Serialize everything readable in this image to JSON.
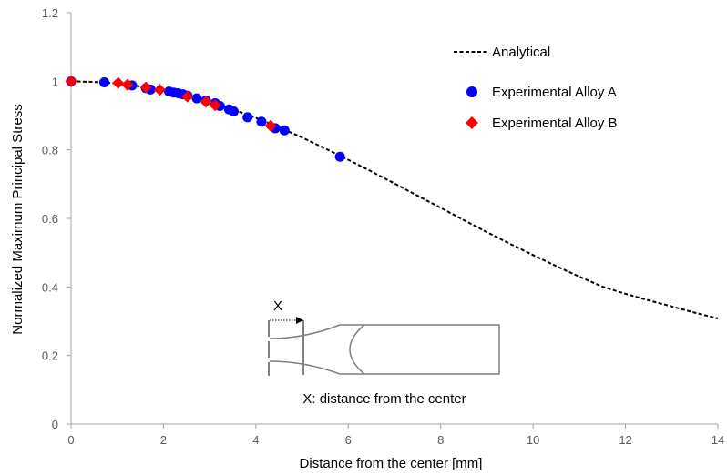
{
  "chart_data": {
    "type": "scatter",
    "xlabel": "Distance from the center [mm]",
    "ylabel": "Normalized  Maximum  Principal Stress",
    "xlim": [
      0,
      14
    ],
    "ylim": [
      0,
      1.2
    ],
    "x_ticks": [
      "0",
      "2",
      "4",
      "6",
      "8",
      "10",
      "12",
      "14"
    ],
    "y_ticks": [
      "0",
      "0.2",
      "0.4",
      "0.6",
      "0.8",
      "1",
      "1.2"
    ],
    "grid": false,
    "legend_position": "top-right",
    "series": [
      {
        "name": "Analytical",
        "kind": "dashed-line",
        "color": "#000000",
        "x": [
          0,
          0.5,
          1,
          1.5,
          2,
          2.5,
          3,
          3.5,
          4,
          4.5,
          5,
          5.5,
          6,
          6.5,
          7,
          7.5,
          8,
          8.5,
          9,
          9.5,
          10,
          10.5,
          11,
          11.5,
          12,
          12.5,
          13,
          13.5,
          14
        ],
        "y": [
          1.0,
          0.998,
          0.994,
          0.985,
          0.973,
          0.958,
          0.94,
          0.918,
          0.893,
          0.866,
          0.836,
          0.804,
          0.771,
          0.737,
          0.702,
          0.666,
          0.631,
          0.595,
          0.56,
          0.526,
          0.493,
          0.461,
          0.43,
          0.401,
          0.38,
          0.361,
          0.343,
          0.325,
          0.308
        ]
      },
      {
        "name": "Experimental Alloy A",
        "kind": "circle-marker",
        "color": "#0000FF",
        "x": [
          0,
          0.72,
          1.32,
          1.62,
          1.72,
          2.12,
          2.22,
          2.32,
          2.42,
          2.52,
          2.72,
          2.92,
          3.12,
          3.22,
          3.42,
          3.52,
          3.82,
          4.12,
          4.42,
          4.62,
          5.82
        ],
        "y": [
          1.0,
          0.997,
          0.988,
          0.98,
          0.976,
          0.97,
          0.967,
          0.965,
          0.962,
          0.958,
          0.95,
          0.944,
          0.936,
          0.928,
          0.918,
          0.912,
          0.895,
          0.882,
          0.863,
          0.857,
          0.78
        ]
      },
      {
        "name": "Experimental Alloy B",
        "kind": "diamond-marker",
        "color": "#FF0000",
        "x": [
          0,
          1.02,
          1.22,
          1.62,
          1.92,
          2.52,
          2.92,
          3.12,
          4.32
        ],
        "y": [
          1.0,
          0.995,
          0.99,
          0.982,
          0.975,
          0.955,
          0.94,
          0.93,
          0.87
        ]
      }
    ]
  },
  "inset": {
    "x_label": "X",
    "caption": "X: distance from the center"
  }
}
